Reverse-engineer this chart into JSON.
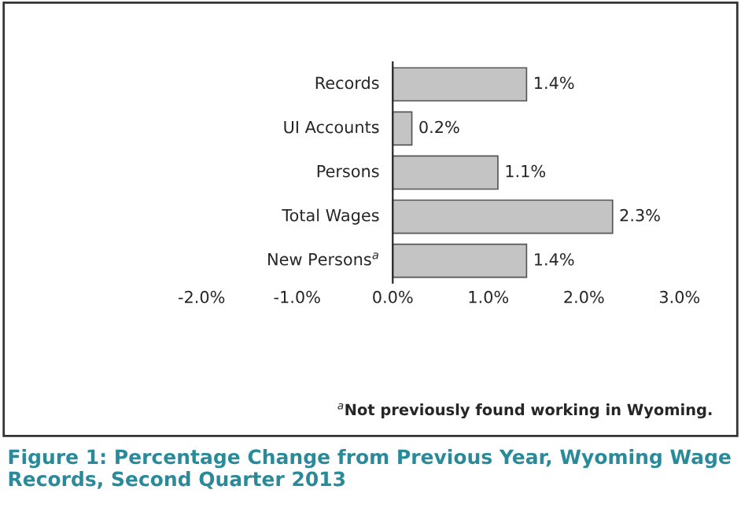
{
  "chart_data": {
    "type": "bar",
    "orientation": "horizontal",
    "title": "Figure 1: Percentage Change from Previous Year, Wyoming Wage Records, Second Quarter 2013",
    "categories": [
      "Records",
      "UI Accounts",
      "Persons",
      "Total Wages",
      "New Persons$^{a}$"
    ],
    "values": [
      1.4,
      0.2,
      1.1,
      2.3,
      1.4
    ],
    "value_labels": [
      "1.4%",
      "0.2%",
      "1.1%",
      "2.3%",
      "1.4%"
    ],
    "color": "#c4c4c4",
    "xlim": [
      -2,
      3
    ],
    "xticks": [
      {
        "value": -2,
        "label": "-2.0%"
      },
      {
        "value": -1,
        "label": "-1.0%"
      },
      {
        "value": 0,
        "label": "0.0%"
      },
      {
        "value": 1,
        "label": "1.0%"
      },
      {
        "value": 2,
        "label": "2.0%"
      },
      {
        "value": 3,
        "label": "3.0%"
      }
    ],
    "annotations": [
      "$^{a}$Not previously found working in Wyoming."
    ],
    "grid": false,
    "legend": false
  }
}
